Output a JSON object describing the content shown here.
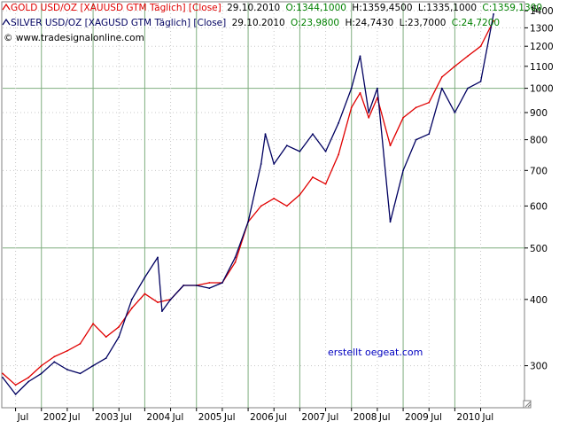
{
  "chart_data": {
    "type": "line",
    "y_unit_label": "$",
    "y_scale": "log",
    "ylim": [
      250,
      1450
    ],
    "y_ticks": [
      300,
      400,
      500,
      600,
      700,
      800,
      900,
      1000,
      1100,
      1200,
      1300,
      1400
    ],
    "x_ticks": [
      {
        "label": "Jul",
        "x": "2001-07"
      },
      {
        "label": "2002",
        "x": "2002-01"
      },
      {
        "label": "Jul",
        "x": "2002-07"
      },
      {
        "label": "2003",
        "x": "2003-01"
      },
      {
        "label": "Jul",
        "x": "2003-07"
      },
      {
        "label": "2004",
        "x": "2004-01"
      },
      {
        "label": "Jul",
        "x": "2004-07"
      },
      {
        "label": "2005",
        "x": "2005-01"
      },
      {
        "label": "Jul",
        "x": "2005-07"
      },
      {
        "label": "2006",
        "x": "2006-01"
      },
      {
        "label": "Jul",
        "x": "2006-07"
      },
      {
        "label": "2007",
        "x": "2007-01"
      },
      {
        "label": "Jul",
        "x": "2007-07"
      },
      {
        "label": "2008",
        "x": "2008-01"
      },
      {
        "label": "Jul",
        "x": "2008-07"
      },
      {
        "label": "2009",
        "x": "2009-01"
      },
      {
        "label": "Jul",
        "x": "2009-07"
      },
      {
        "label": "2010",
        "x": "2010-01"
      },
      {
        "label": "Jul",
        "x": "2010-07"
      }
    ],
    "grid": true,
    "legend_position": "top-left",
    "series": [
      {
        "name": "GOLD USD/OZ [XAUUSD GTM  Täglich] [Close]",
        "color": "#e00000",
        "date": "29.10.2010",
        "ohlc_text": [
          {
            "text": "O:1344,1000",
            "color": "#008000"
          },
          {
            "text": "H:1359,4500",
            "color": "#000000"
          },
          {
            "text": "L:1335,1000",
            "color": "#000000"
          },
          {
            "text": "C:1359,1300",
            "color": "#008000"
          }
        ],
        "x": [
          "2001-04",
          "2001-07",
          "2001-10",
          "2002-01",
          "2002-04",
          "2002-07",
          "2002-10",
          "2003-01",
          "2003-04",
          "2003-07",
          "2003-10",
          "2004-01",
          "2004-04",
          "2004-07",
          "2004-10",
          "2005-01",
          "2005-04",
          "2005-07",
          "2005-10",
          "2006-01",
          "2006-04",
          "2006-07",
          "2006-10",
          "2007-01",
          "2007-04",
          "2007-07",
          "2007-10",
          "2008-01",
          "2008-03",
          "2008-05",
          "2008-07",
          "2008-10",
          "2009-01",
          "2009-04",
          "2009-07",
          "2009-10",
          "2010-01",
          "2010-04",
          "2010-07",
          "2010-10"
        ],
        "values": [
          290,
          276,
          285,
          300,
          312,
          320,
          330,
          360,
          340,
          355,
          385,
          410,
          395,
          400,
          425,
          425,
          430,
          430,
          470,
          560,
          600,
          620,
          600,
          630,
          680,
          660,
          750,
          920,
          980,
          880,
          960,
          780,
          880,
          920,
          940,
          1050,
          1100,
          1150,
          1200,
          1340
        ]
      },
      {
        "name": "SILVER USD/OZ [XAGUSD GTM  Täglich] [Close]",
        "color": "#000060",
        "date": "29.10.2010",
        "ohlc_text": [
          {
            "text": "O:23,9800",
            "color": "#008000"
          },
          {
            "text": "H:24,7430",
            "color": "#000000"
          },
          {
            "text": "L:23,7000",
            "color": "#000000"
          },
          {
            "text": "C:24,7200",
            "color": "#008000"
          }
        ],
        "x": [
          "2001-04",
          "2001-07",
          "2001-10",
          "2002-01",
          "2002-04",
          "2002-07",
          "2002-10",
          "2003-01",
          "2003-04",
          "2003-07",
          "2003-10",
          "2004-01",
          "2004-04",
          "2004-05",
          "2004-07",
          "2004-10",
          "2005-01",
          "2005-04",
          "2005-07",
          "2005-10",
          "2006-01",
          "2006-04",
          "2006-05",
          "2006-07",
          "2006-10",
          "2007-01",
          "2007-04",
          "2007-07",
          "2007-10",
          "2008-01",
          "2008-03",
          "2008-05",
          "2008-07",
          "2008-10",
          "2009-01",
          "2009-04",
          "2009-07",
          "2009-10",
          "2010-01",
          "2010-04",
          "2010-07",
          "2010-10"
        ],
        "values": [
          285,
          265,
          280,
          290,
          305,
          295,
          290,
          300,
          310,
          340,
          400,
          440,
          480,
          380,
          400,
          425,
          425,
          420,
          430,
          480,
          560,
          720,
          820,
          720,
          780,
          760,
          820,
          760,
          860,
          1000,
          1150,
          900,
          1000,
          560,
          700,
          800,
          820,
          1000,
          900,
          1000,
          1030,
          1380
        ]
      }
    ],
    "watermark": "© www.tradesignalonline.com",
    "annotation": "erstellt oegeat.com"
  }
}
